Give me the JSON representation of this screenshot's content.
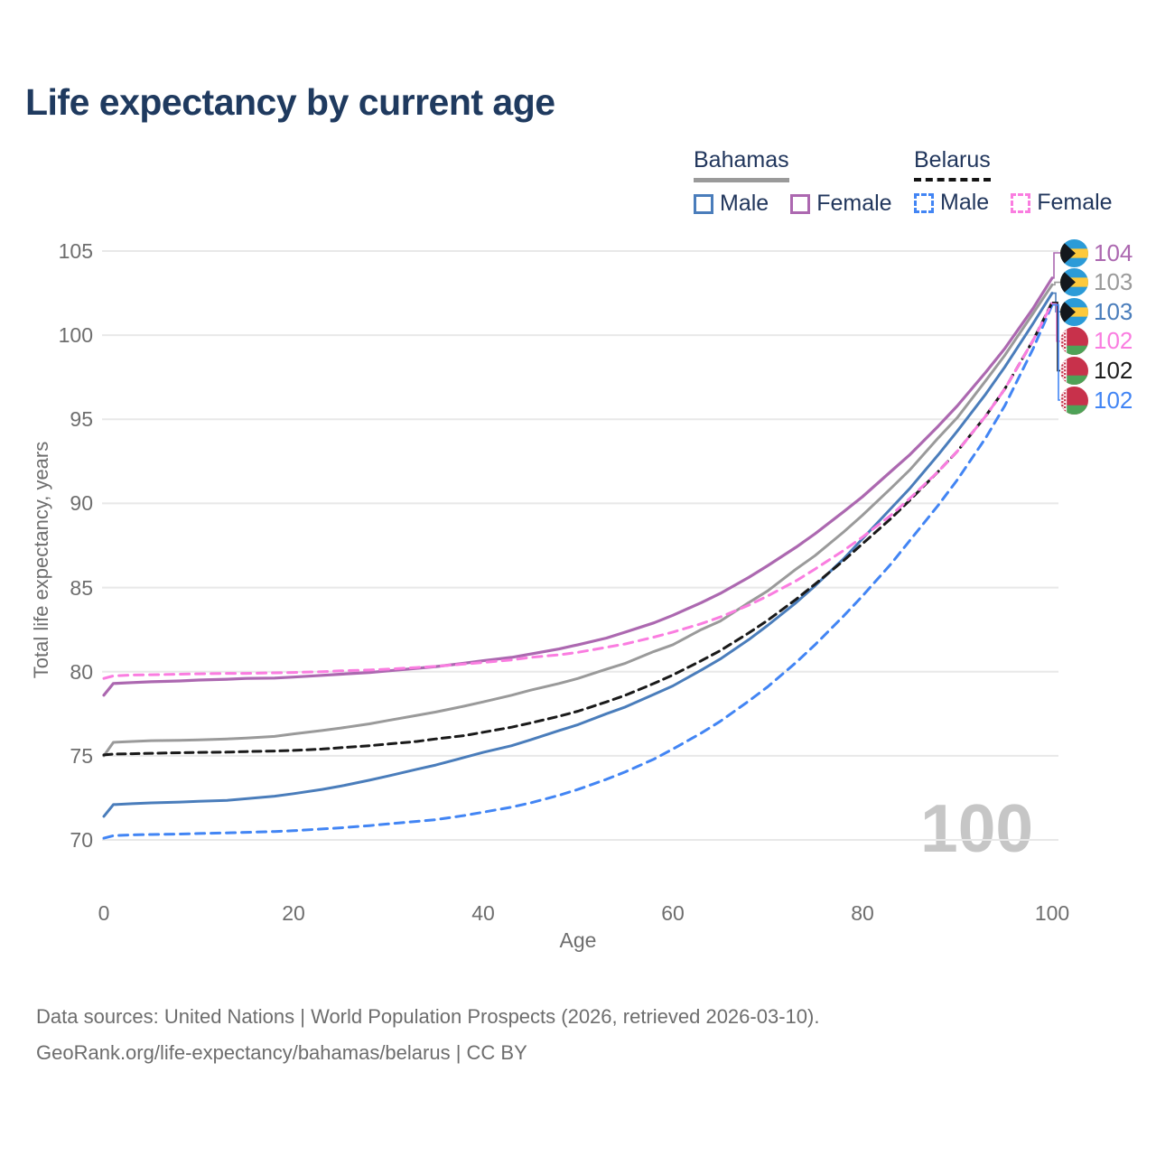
{
  "title": "Life expectancy by current age",
  "legend": {
    "groups": [
      {
        "country": "Bahamas",
        "line_style": "solid",
        "line_color": "#9a9a9a",
        "items": [
          {
            "label": "Male",
            "color": "#4a7dbb",
            "dashed": false
          },
          {
            "label": "Female",
            "color": "#ac68b0",
            "dashed": false
          }
        ]
      },
      {
        "country": "Belarus",
        "line_style": "dashed",
        "line_color": "#141414",
        "items": [
          {
            "label": "Male",
            "color": "#4285f4",
            "dashed": true
          },
          {
            "label": "Female",
            "color": "#fa7de0",
            "dashed": true
          }
        ]
      }
    ]
  },
  "y_axis": {
    "label": "Total life expectancy, years",
    "ticks": [
      105,
      100,
      95,
      90,
      85,
      80,
      75,
      70
    ]
  },
  "x_axis": {
    "label": "Age",
    "ticks": [
      0,
      20,
      40,
      60,
      80,
      100
    ]
  },
  "watermark": "100",
  "footer": {
    "line1": "Data sources: United Nations | World Population Prospects (2026, retrieved 2026-03-10).",
    "line2": "GeoRank.org/life-expectancy/bahamas/belarus | CC BY"
  },
  "colors": {
    "title": "#1f3a5f",
    "axis_text": "#6e6e6e",
    "gridline": "#e8e8e8",
    "bahamas_male": "#4a7dbb",
    "bahamas_female": "#ac68b0",
    "bahamas_total": "#9a9a9a",
    "belarus_male": "#4285f4",
    "belarus_female": "#fa7de0",
    "belarus_total": "#1a1a1a",
    "watermark": "#c6c6c6"
  },
  "chart_data": {
    "type": "line",
    "title": "Life expectancy by current age",
    "xlabel": "Age",
    "ylabel": "Total life expectancy, years",
    "xlim": [
      0,
      100
    ],
    "ylim": [
      70,
      105
    ],
    "grid": "horizontal-only",
    "legend_position": "top-right",
    "series": [
      {
        "key": "bahamas_male",
        "name": "Bahamas Male",
        "country": "Bahamas",
        "sex": "Male",
        "style": "solid",
        "color": "#4a7dbb",
        "width": 3,
        "points": [
          [
            0,
            71.4
          ],
          [
            1,
            72.1
          ],
          [
            3,
            72.15
          ],
          [
            5,
            72.2
          ],
          [
            8,
            72.25
          ],
          [
            10,
            72.3
          ],
          [
            13,
            72.35
          ],
          [
            15,
            72.45
          ],
          [
            18,
            72.6
          ],
          [
            20,
            72.75
          ],
          [
            23,
            73.0
          ],
          [
            25,
            73.2
          ],
          [
            28,
            73.55
          ],
          [
            30,
            73.8
          ],
          [
            33,
            74.2
          ],
          [
            35,
            74.45
          ],
          [
            38,
            74.9
          ],
          [
            40,
            75.2
          ],
          [
            43,
            75.6
          ],
          [
            45,
            75.95
          ],
          [
            48,
            76.5
          ],
          [
            50,
            76.85
          ],
          [
            53,
            77.5
          ],
          [
            55,
            77.9
          ],
          [
            58,
            78.65
          ],
          [
            60,
            79.15
          ],
          [
            63,
            80.1
          ],
          [
            65,
            80.75
          ],
          [
            68,
            81.9
          ],
          [
            70,
            82.75
          ],
          [
            73,
            84.1
          ],
          [
            75,
            85.1
          ],
          [
            78,
            86.7
          ],
          [
            80,
            87.9
          ],
          [
            83,
            89.7
          ],
          [
            85,
            90.9
          ],
          [
            88,
            92.9
          ],
          [
            90,
            94.3
          ],
          [
            93,
            96.5
          ],
          [
            95,
            98.1
          ],
          [
            98,
            100.7
          ],
          [
            100,
            102.5
          ]
        ]
      },
      {
        "key": "bahamas_total",
        "name": "Bahamas (both sexes)",
        "country": "Bahamas",
        "sex": "Both",
        "style": "solid",
        "color": "#9a9a9a",
        "width": 3,
        "points": [
          [
            0,
            75.0
          ],
          [
            1,
            75.8
          ],
          [
            3,
            75.85
          ],
          [
            5,
            75.9
          ],
          [
            8,
            75.92
          ],
          [
            10,
            75.95
          ],
          [
            13,
            76.0
          ],
          [
            15,
            76.05
          ],
          [
            18,
            76.15
          ],
          [
            20,
            76.3
          ],
          [
            23,
            76.5
          ],
          [
            25,
            76.65
          ],
          [
            28,
            76.9
          ],
          [
            30,
            77.1
          ],
          [
            33,
            77.4
          ],
          [
            35,
            77.6
          ],
          [
            38,
            77.95
          ],
          [
            40,
            78.2
          ],
          [
            43,
            78.6
          ],
          [
            45,
            78.9
          ],
          [
            48,
            79.3
          ],
          [
            50,
            79.6
          ],
          [
            53,
            80.15
          ],
          [
            55,
            80.5
          ],
          [
            58,
            81.2
          ],
          [
            60,
            81.6
          ],
          [
            63,
            82.5
          ],
          [
            65,
            83.0
          ],
          [
            68,
            84.1
          ],
          [
            70,
            84.8
          ],
          [
            73,
            86.1
          ],
          [
            75,
            86.9
          ],
          [
            78,
            88.3
          ],
          [
            80,
            89.3
          ],
          [
            83,
            90.9
          ],
          [
            85,
            92.0
          ],
          [
            88,
            93.9
          ],
          [
            90,
            95.1
          ],
          [
            93,
            97.3
          ],
          [
            95,
            98.8
          ],
          [
            98,
            101.3
          ],
          [
            100,
            103.0
          ]
        ]
      },
      {
        "key": "bahamas_female",
        "name": "Bahamas Female",
        "country": "Bahamas",
        "sex": "Female",
        "style": "solid",
        "color": "#ac68b0",
        "width": 3.2,
        "points": [
          [
            0,
            78.6
          ],
          [
            1,
            79.3
          ],
          [
            3,
            79.35
          ],
          [
            5,
            79.4
          ],
          [
            8,
            79.45
          ],
          [
            10,
            79.5
          ],
          [
            13,
            79.55
          ],
          [
            15,
            79.6
          ],
          [
            18,
            79.62
          ],
          [
            20,
            79.68
          ],
          [
            23,
            79.78
          ],
          [
            25,
            79.85
          ],
          [
            28,
            79.95
          ],
          [
            30,
            80.05
          ],
          [
            33,
            80.2
          ],
          [
            35,
            80.3
          ],
          [
            38,
            80.5
          ],
          [
            40,
            80.65
          ],
          [
            43,
            80.85
          ],
          [
            45,
            81.05
          ],
          [
            48,
            81.35
          ],
          [
            50,
            81.6
          ],
          [
            53,
            82.0
          ],
          [
            55,
            82.35
          ],
          [
            58,
            82.9
          ],
          [
            60,
            83.35
          ],
          [
            63,
            84.1
          ],
          [
            65,
            84.65
          ],
          [
            68,
            85.6
          ],
          [
            70,
            86.3
          ],
          [
            73,
            87.4
          ],
          [
            75,
            88.2
          ],
          [
            78,
            89.5
          ],
          [
            80,
            90.4
          ],
          [
            83,
            91.9
          ],
          [
            85,
            92.9
          ],
          [
            88,
            94.6
          ],
          [
            90,
            95.8
          ],
          [
            93,
            97.8
          ],
          [
            95,
            99.2
          ],
          [
            98,
            101.6
          ],
          [
            100,
            103.4
          ]
        ]
      },
      {
        "key": "belarus_male",
        "name": "Belarus Male",
        "country": "Belarus",
        "sex": "Male",
        "style": "dashed",
        "color": "#4285f4",
        "width": 3,
        "dash": "10 7",
        "points": [
          [
            0,
            70.1
          ],
          [
            1,
            70.25
          ],
          [
            3,
            70.3
          ],
          [
            5,
            70.32
          ],
          [
            8,
            70.35
          ],
          [
            10,
            70.38
          ],
          [
            13,
            70.42
          ],
          [
            15,
            70.45
          ],
          [
            18,
            70.5
          ],
          [
            20,
            70.55
          ],
          [
            23,
            70.65
          ],
          [
            25,
            70.72
          ],
          [
            28,
            70.85
          ],
          [
            30,
            70.95
          ],
          [
            33,
            71.1
          ],
          [
            35,
            71.2
          ],
          [
            38,
            71.45
          ],
          [
            40,
            71.65
          ],
          [
            43,
            71.95
          ],
          [
            45,
            72.2
          ],
          [
            48,
            72.65
          ],
          [
            50,
            73.0
          ],
          [
            53,
            73.6
          ],
          [
            55,
            74.05
          ],
          [
            58,
            74.8
          ],
          [
            60,
            75.4
          ],
          [
            63,
            76.35
          ],
          [
            65,
            77.05
          ],
          [
            68,
            78.25
          ],
          [
            70,
            79.1
          ],
          [
            73,
            80.55
          ],
          [
            75,
            81.6
          ],
          [
            78,
            83.3
          ],
          [
            80,
            84.5
          ],
          [
            83,
            86.4
          ],
          [
            85,
            87.8
          ],
          [
            88,
            89.9
          ],
          [
            90,
            91.4
          ],
          [
            93,
            93.9
          ],
          [
            95,
            95.8
          ],
          [
            98,
            99.2
          ],
          [
            100,
            101.8
          ]
        ]
      },
      {
        "key": "belarus_total",
        "name": "Belarus (both sexes)",
        "country": "Belarus",
        "sex": "Both",
        "style": "dashed",
        "color": "#1a1a1a",
        "width": 3,
        "dash": "9 6",
        "points": [
          [
            0,
            75.05
          ],
          [
            1,
            75.1
          ],
          [
            3,
            75.12
          ],
          [
            5,
            75.15
          ],
          [
            8,
            75.18
          ],
          [
            10,
            75.2
          ],
          [
            13,
            75.22
          ],
          [
            15,
            75.25
          ],
          [
            18,
            75.28
          ],
          [
            20,
            75.32
          ],
          [
            23,
            75.4
          ],
          [
            25,
            75.48
          ],
          [
            28,
            75.6
          ],
          [
            30,
            75.7
          ],
          [
            33,
            75.85
          ],
          [
            35,
            76.0
          ],
          [
            38,
            76.2
          ],
          [
            40,
            76.4
          ],
          [
            43,
            76.7
          ],
          [
            45,
            76.95
          ],
          [
            48,
            77.35
          ],
          [
            50,
            77.65
          ],
          [
            53,
            78.2
          ],
          [
            55,
            78.6
          ],
          [
            58,
            79.3
          ],
          [
            60,
            79.8
          ],
          [
            63,
            80.65
          ],
          [
            65,
            81.25
          ],
          [
            68,
            82.3
          ],
          [
            70,
            83.05
          ],
          [
            73,
            84.3
          ],
          [
            75,
            85.2
          ],
          [
            78,
            86.6
          ],
          [
            80,
            87.6
          ],
          [
            83,
            89.1
          ],
          [
            85,
            90.2
          ],
          [
            88,
            91.9
          ],
          [
            90,
            93.1
          ],
          [
            93,
            95.2
          ],
          [
            95,
            96.8
          ],
          [
            98,
            99.7
          ],
          [
            100,
            101.95
          ]
        ]
      },
      {
        "key": "belarus_female",
        "name": "Belarus Female",
        "country": "Belarus",
        "sex": "Female",
        "style": "dashed",
        "color": "#fa7de0",
        "width": 3,
        "dash": "10 7",
        "points": [
          [
            0,
            79.6
          ],
          [
            1,
            79.75
          ],
          [
            3,
            79.8
          ],
          [
            5,
            79.82
          ],
          [
            8,
            79.85
          ],
          [
            10,
            79.87
          ],
          [
            13,
            79.9
          ],
          [
            15,
            79.9
          ],
          [
            18,
            79.93
          ],
          [
            20,
            79.95
          ],
          [
            23,
            80.0
          ],
          [
            25,
            80.05
          ],
          [
            28,
            80.1
          ],
          [
            30,
            80.15
          ],
          [
            33,
            80.25
          ],
          [
            35,
            80.32
          ],
          [
            38,
            80.45
          ],
          [
            40,
            80.55
          ],
          [
            43,
            80.7
          ],
          [
            45,
            80.85
          ],
          [
            48,
            81.0
          ],
          [
            50,
            81.15
          ],
          [
            53,
            81.45
          ],
          [
            55,
            81.65
          ],
          [
            58,
            82.05
          ],
          [
            60,
            82.35
          ],
          [
            63,
            82.85
          ],
          [
            65,
            83.25
          ],
          [
            68,
            83.95
          ],
          [
            70,
            84.5
          ],
          [
            73,
            85.4
          ],
          [
            75,
            86.1
          ],
          [
            78,
            87.2
          ],
          [
            80,
            88.0
          ],
          [
            83,
            89.3
          ],
          [
            85,
            90.3
          ],
          [
            88,
            91.9
          ],
          [
            90,
            93.1
          ],
          [
            93,
            95.2
          ],
          [
            95,
            96.8
          ],
          [
            98,
            99.7
          ],
          [
            100,
            101.9
          ]
        ]
      }
    ]
  },
  "endpoint_labels": [
    {
      "value": "104",
      "color": "#ac68b0",
      "flag": "bahamas",
      "series": "bahamas_female"
    },
    {
      "value": "103",
      "color": "#9a9a9a",
      "flag": "bahamas",
      "series": "bahamas_total"
    },
    {
      "value": "103",
      "color": "#4a7dbb",
      "flag": "bahamas",
      "series": "bahamas_male"
    },
    {
      "value": "102",
      "color": "#fa7de0",
      "flag": "belarus",
      "series": "belarus_female"
    },
    {
      "value": "102",
      "color": "#1d1d1d",
      "flag": "belarus",
      "series": "belarus_total"
    },
    {
      "value": "102",
      "color": "#4285f4",
      "flag": "belarus",
      "series": "belarus_male"
    }
  ]
}
